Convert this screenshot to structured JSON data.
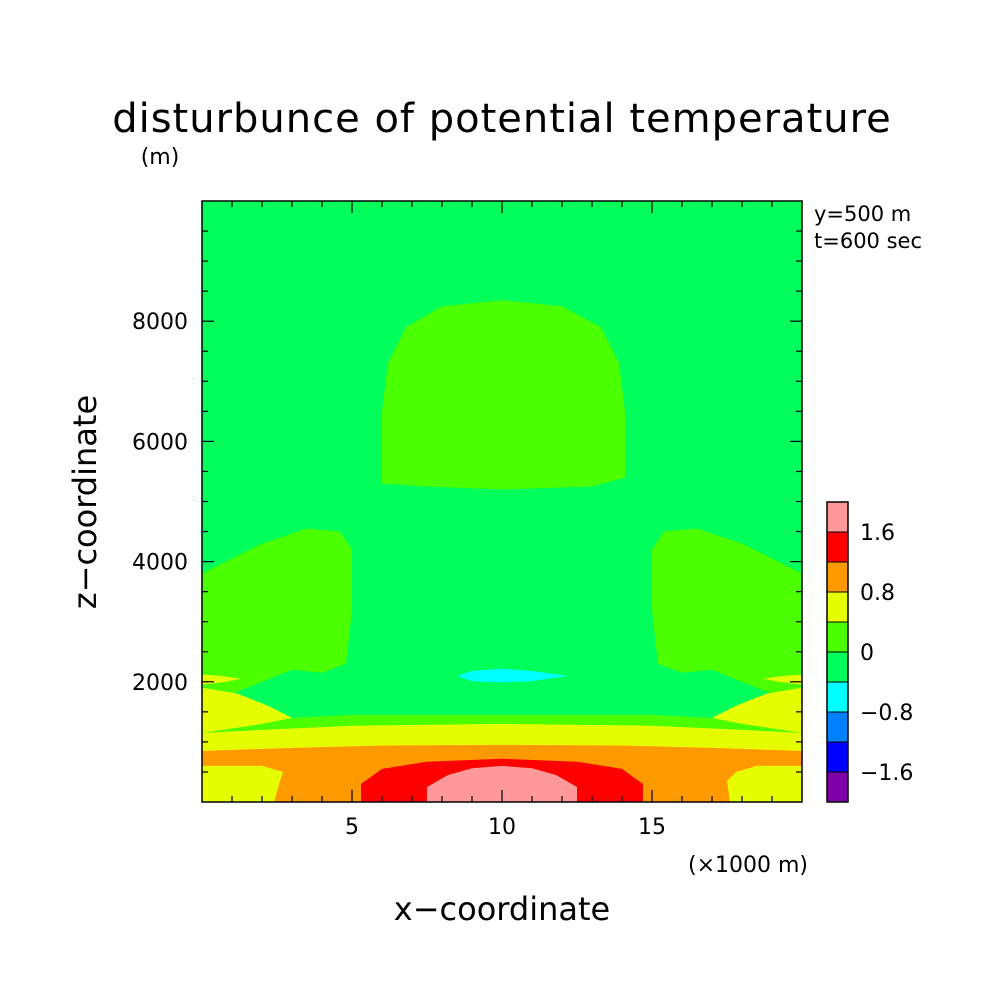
{
  "chart_data": {
    "type": "contour",
    "title": "disturbunce of potential temperature",
    "yunit": "(m)",
    "xunit": "(×1000 m)",
    "xlabel": "x−coordinate",
    "ylabel": "z−coordinate",
    "annotations": [
      "y=500 m",
      "t=600 sec"
    ],
    "xlim": [
      0,
      20
    ],
    "ylim": [
      0,
      10000
    ],
    "xticks": [
      5,
      10,
      15
    ],
    "yticks": [
      2000,
      4000,
      6000,
      8000
    ],
    "colorbar": {
      "levels": [
        -2.0,
        -1.6,
        -1.2,
        -0.8,
        -0.4,
        0,
        0.4,
        0.8,
        1.2,
        1.6,
        2.0
      ],
      "colors": [
        "#7f00a8",
        "#0000ff",
        "#0080ff",
        "#00ffff",
        "#00ff5a",
        "#4cff00",
        "#e6ff00",
        "#ff9900",
        "#ff0000",
        "#ff9999"
      ],
      "labels": [
        {
          "value": 1.6,
          "text": "1.6"
        },
        {
          "value": 0.8,
          "text": "0.8"
        },
        {
          "value": 0,
          "text": "0"
        },
        {
          "value": -0.8,
          "text": "−0.8"
        },
        {
          "value": -1.6,
          "text": "−1.6"
        }
      ]
    },
    "background_level_color": "#00ff5a",
    "regions": [
      {
        "name": "upper-warm-dome",
        "color": "#4cff00",
        "pts": [
          [
            6.0,
            5300
          ],
          [
            6.0,
            6500
          ],
          [
            6.2,
            7300
          ],
          [
            6.8,
            7900
          ],
          [
            8.0,
            8250
          ],
          [
            10.0,
            8350
          ],
          [
            12.0,
            8250
          ],
          [
            13.3,
            7900
          ],
          [
            13.9,
            7300
          ],
          [
            14.1,
            6500
          ],
          [
            14.1,
            5400
          ],
          [
            13.0,
            5250
          ],
          [
            10.0,
            5200
          ],
          [
            7.5,
            5250
          ]
        ]
      },
      {
        "name": "left-side-warm",
        "color": "#4cff00",
        "pts": [
          [
            0,
            1600
          ],
          [
            1.0,
            1800
          ],
          [
            2.0,
            2000
          ],
          [
            3.0,
            2200
          ],
          [
            4.0,
            2150
          ],
          [
            4.8,
            2300
          ],
          [
            5.0,
            3200
          ],
          [
            5.0,
            4200
          ],
          [
            4.6,
            4500
          ],
          [
            3.5,
            4550
          ],
          [
            2.0,
            4300
          ],
          [
            0.8,
            4000
          ],
          [
            0,
            3800
          ]
        ]
      },
      {
        "name": "right-side-warm",
        "color": "#4cff00",
        "pts": [
          [
            20,
            1600
          ],
          [
            19.0,
            1800
          ],
          [
            18.0,
            2000
          ],
          [
            17.0,
            2200
          ],
          [
            16.0,
            2150
          ],
          [
            15.2,
            2300
          ],
          [
            15.0,
            3200
          ],
          [
            15.0,
            4200
          ],
          [
            15.4,
            4500
          ],
          [
            16.5,
            4550
          ],
          [
            18.0,
            4300
          ],
          [
            19.2,
            4000
          ],
          [
            20,
            3800
          ]
        ]
      },
      {
        "name": "lower-warm-layer",
        "color": "#4cff00",
        "pts": [
          [
            0,
            900
          ],
          [
            0,
            1300
          ],
          [
            1.2,
            1350
          ],
          [
            3.0,
            1400
          ],
          [
            5.0,
            1450
          ],
          [
            7.0,
            1450
          ],
          [
            10.0,
            1450
          ],
          [
            13.0,
            1450
          ],
          [
            15.0,
            1450
          ],
          [
            17.0,
            1400
          ],
          [
            18.8,
            1350
          ],
          [
            20,
            1300
          ],
          [
            20,
            900
          ]
        ]
      },
      {
        "name": "left-yellow-wedge",
        "color": "#e6ff00",
        "pts": [
          [
            0,
            1150
          ],
          [
            2.0,
            1300
          ],
          [
            3.0,
            1400
          ],
          [
            2.2,
            1600
          ],
          [
            1.2,
            1800
          ],
          [
            0,
            1900
          ]
        ]
      },
      {
        "name": "left-yellow-streak",
        "color": "#e6ff00",
        "pts": [
          [
            0,
            1950
          ],
          [
            0.8,
            2000
          ],
          [
            1.3,
            2050
          ],
          [
            0.6,
            2100
          ],
          [
            0,
            2120
          ]
        ]
      },
      {
        "name": "right-yellow-wedge",
        "color": "#e6ff00",
        "pts": [
          [
            20,
            1150
          ],
          [
            18.0,
            1300
          ],
          [
            17.0,
            1400
          ],
          [
            17.8,
            1600
          ],
          [
            18.8,
            1800
          ],
          [
            20,
            1900
          ]
        ]
      },
      {
        "name": "right-yellow-streak",
        "color": "#e6ff00",
        "pts": [
          [
            20,
            1950
          ],
          [
            19.2,
            2000
          ],
          [
            18.7,
            2050
          ],
          [
            19.4,
            2100
          ],
          [
            20,
            2120
          ]
        ]
      },
      {
        "name": "yellow-band",
        "color": "#e6ff00",
        "pts": [
          [
            0,
            0
          ],
          [
            0,
            1150
          ],
          [
            2.0,
            1200
          ],
          [
            5.0,
            1270
          ],
          [
            10.0,
            1300
          ],
          [
            15.0,
            1270
          ],
          [
            18.0,
            1200
          ],
          [
            20,
            1150
          ],
          [
            20,
            0
          ]
        ]
      },
      {
        "name": "orange-band",
        "color": "#ff9900",
        "pts": [
          [
            0,
            600
          ],
          [
            0,
            850
          ],
          [
            3.0,
            900
          ],
          [
            6.0,
            940
          ],
          [
            10.0,
            950
          ],
          [
            14.0,
            940
          ],
          [
            17.0,
            900
          ],
          [
            20,
            850
          ],
          [
            20,
            600
          ],
          [
            18.5,
            600
          ],
          [
            17.8,
            500
          ],
          [
            17.5,
            350
          ],
          [
            17.6,
            0
          ],
          [
            2.4,
            0
          ],
          [
            2.6,
            350
          ],
          [
            2.7,
            500
          ],
          [
            2.0,
            600
          ]
        ]
      },
      {
        "name": "red-core",
        "color": "#ff0000",
        "pts": [
          [
            5.3,
            0
          ],
          [
            5.3,
            300
          ],
          [
            6.0,
            550
          ],
          [
            7.5,
            670
          ],
          [
            10.0,
            720
          ],
          [
            12.5,
            670
          ],
          [
            14.0,
            550
          ],
          [
            14.7,
            300
          ],
          [
            14.7,
            0
          ]
        ]
      },
      {
        "name": "pink-core",
        "color": "#ff9999",
        "pts": [
          [
            7.5,
            0
          ],
          [
            7.5,
            250
          ],
          [
            8.2,
            450
          ],
          [
            9.0,
            560
          ],
          [
            10.0,
            600
          ],
          [
            11.0,
            560
          ],
          [
            11.8,
            450
          ],
          [
            12.5,
            250
          ],
          [
            12.5,
            0
          ]
        ]
      },
      {
        "name": "cool-lens",
        "color": "#00ffff",
        "pts": [
          [
            8.5,
            2100
          ],
          [
            9.0,
            2180
          ],
          [
            10.0,
            2220
          ],
          [
            11.0,
            2180
          ],
          [
            12.2,
            2100
          ],
          [
            11.0,
            2010
          ],
          [
            10.0,
            1990
          ],
          [
            9.0,
            2010
          ]
        ]
      }
    ]
  }
}
